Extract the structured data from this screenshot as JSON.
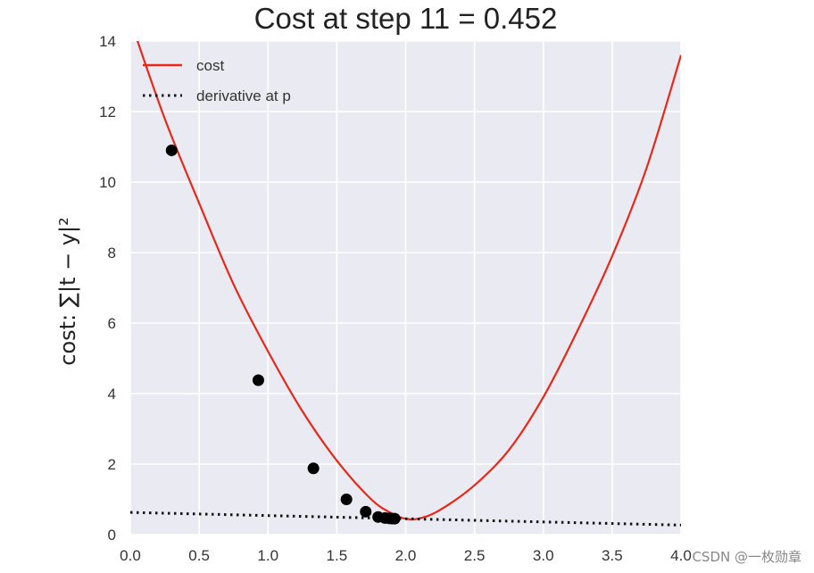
{
  "chart_data": {
    "type": "line",
    "title": "Cost at step 11 = 0.452",
    "xlabel": "",
    "ylabel": "cost: ∑|t − y|²",
    "xlim": [
      0.0,
      4.0
    ],
    "ylim": [
      0,
      14
    ],
    "xticks": [
      "0.0",
      "0.5",
      "1.0",
      "1.5",
      "2.0",
      "2.5",
      "3.0",
      "3.5",
      "4.0"
    ],
    "yticks": [
      "0",
      "2",
      "4",
      "6",
      "8",
      "10",
      "12",
      "14"
    ],
    "grid": true,
    "legend_position": "top-left",
    "series": [
      {
        "name": "cost",
        "kind": "curve",
        "color": "#e8281a",
        "x": [
          0.0,
          0.25,
          0.5,
          0.75,
          1.0,
          1.25,
          1.5,
          1.75,
          1.9,
          2.0,
          2.1,
          2.25,
          2.5,
          2.75,
          3.0,
          3.25,
          3.5,
          3.75,
          4.0
        ],
        "y": [
          14.6,
          11.8,
          9.4,
          7.1,
          5.2,
          3.5,
          2.1,
          1.0,
          0.6,
          0.45,
          0.46,
          0.7,
          1.4,
          2.4,
          3.9,
          5.8,
          7.9,
          10.4,
          13.6
        ]
      },
      {
        "name": "derivative at p",
        "kind": "dotted-line",
        "color": "#111111",
        "x": [
          0.0,
          4.0
        ],
        "y": [
          0.63,
          0.27
        ]
      },
      {
        "name": "",
        "kind": "points",
        "color": "#000000",
        "x": [
          0.3,
          0.93,
          1.33,
          1.57,
          1.71,
          1.8,
          1.85,
          1.88,
          1.9,
          1.92
        ],
        "y": [
          10.9,
          4.38,
          1.88,
          1.0,
          0.65,
          0.5,
          0.47,
          0.46,
          0.455,
          0.452
        ]
      }
    ]
  },
  "watermark": "CSDN @一枚勋章"
}
